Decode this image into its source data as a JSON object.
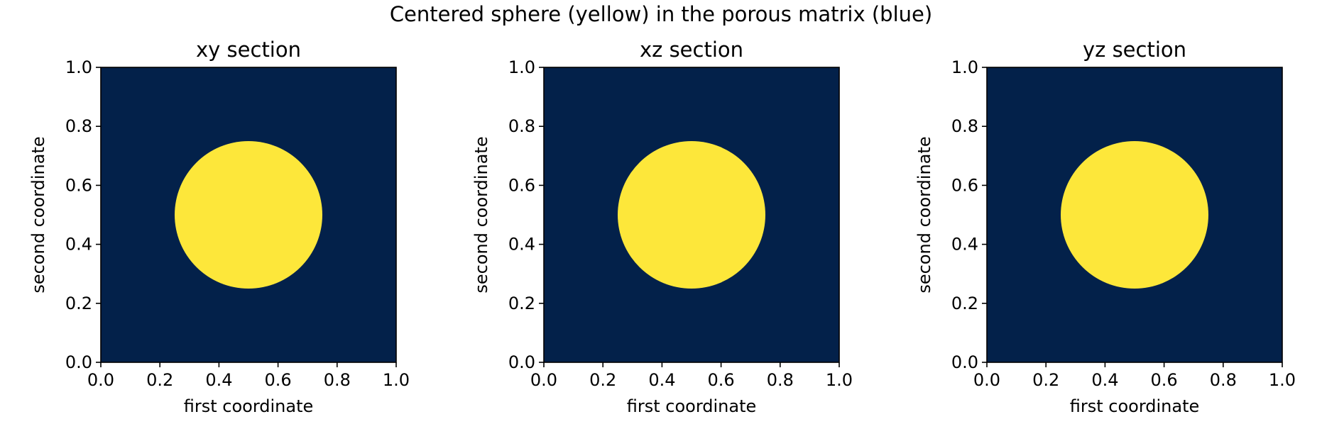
{
  "figure": {
    "title": "Centered sphere (yellow) in the porous matrix (blue)"
  },
  "colors": {
    "matrix": "#03214a",
    "sphere": "#fde73a",
    "axis": "#000000"
  },
  "chart_data": [
    {
      "type": "heatmap",
      "title": "xy section",
      "xlabel": "first coordinate",
      "ylabel": "second coordinate",
      "xlim": [
        0.0,
        1.0
      ],
      "ylim": [
        0.0,
        1.0
      ],
      "xticks": [
        "0.0",
        "0.2",
        "0.4",
        "0.6",
        "0.8",
        "1.0"
      ],
      "yticks": [
        "0.0",
        "0.2",
        "0.4",
        "0.6",
        "0.8",
        "1.0"
      ],
      "circle": {
        "center": [
          0.5,
          0.5
        ],
        "radius": 0.25
      },
      "grid": false
    },
    {
      "type": "heatmap",
      "title": "xz section",
      "xlabel": "first coordinate",
      "ylabel": "second coordinate",
      "xlim": [
        0.0,
        1.0
      ],
      "ylim": [
        0.0,
        1.0
      ],
      "xticks": [
        "0.0",
        "0.2",
        "0.4",
        "0.6",
        "0.8",
        "1.0"
      ],
      "yticks": [
        "0.0",
        "0.2",
        "0.4",
        "0.6",
        "0.8",
        "1.0"
      ],
      "circle": {
        "center": [
          0.5,
          0.5
        ],
        "radius": 0.25
      },
      "grid": false
    },
    {
      "type": "heatmap",
      "title": "yz section",
      "xlabel": "first coordinate",
      "ylabel": "second coordinate",
      "xlim": [
        0.0,
        1.0
      ],
      "ylim": [
        0.0,
        1.0
      ],
      "xticks": [
        "0.0",
        "0.2",
        "0.4",
        "0.6",
        "0.8",
        "1.0"
      ],
      "yticks": [
        "0.0",
        "0.2",
        "0.4",
        "0.6",
        "0.8",
        "1.0"
      ],
      "circle": {
        "center": [
          0.5,
          0.5
        ],
        "radius": 0.25
      },
      "grid": false
    }
  ]
}
